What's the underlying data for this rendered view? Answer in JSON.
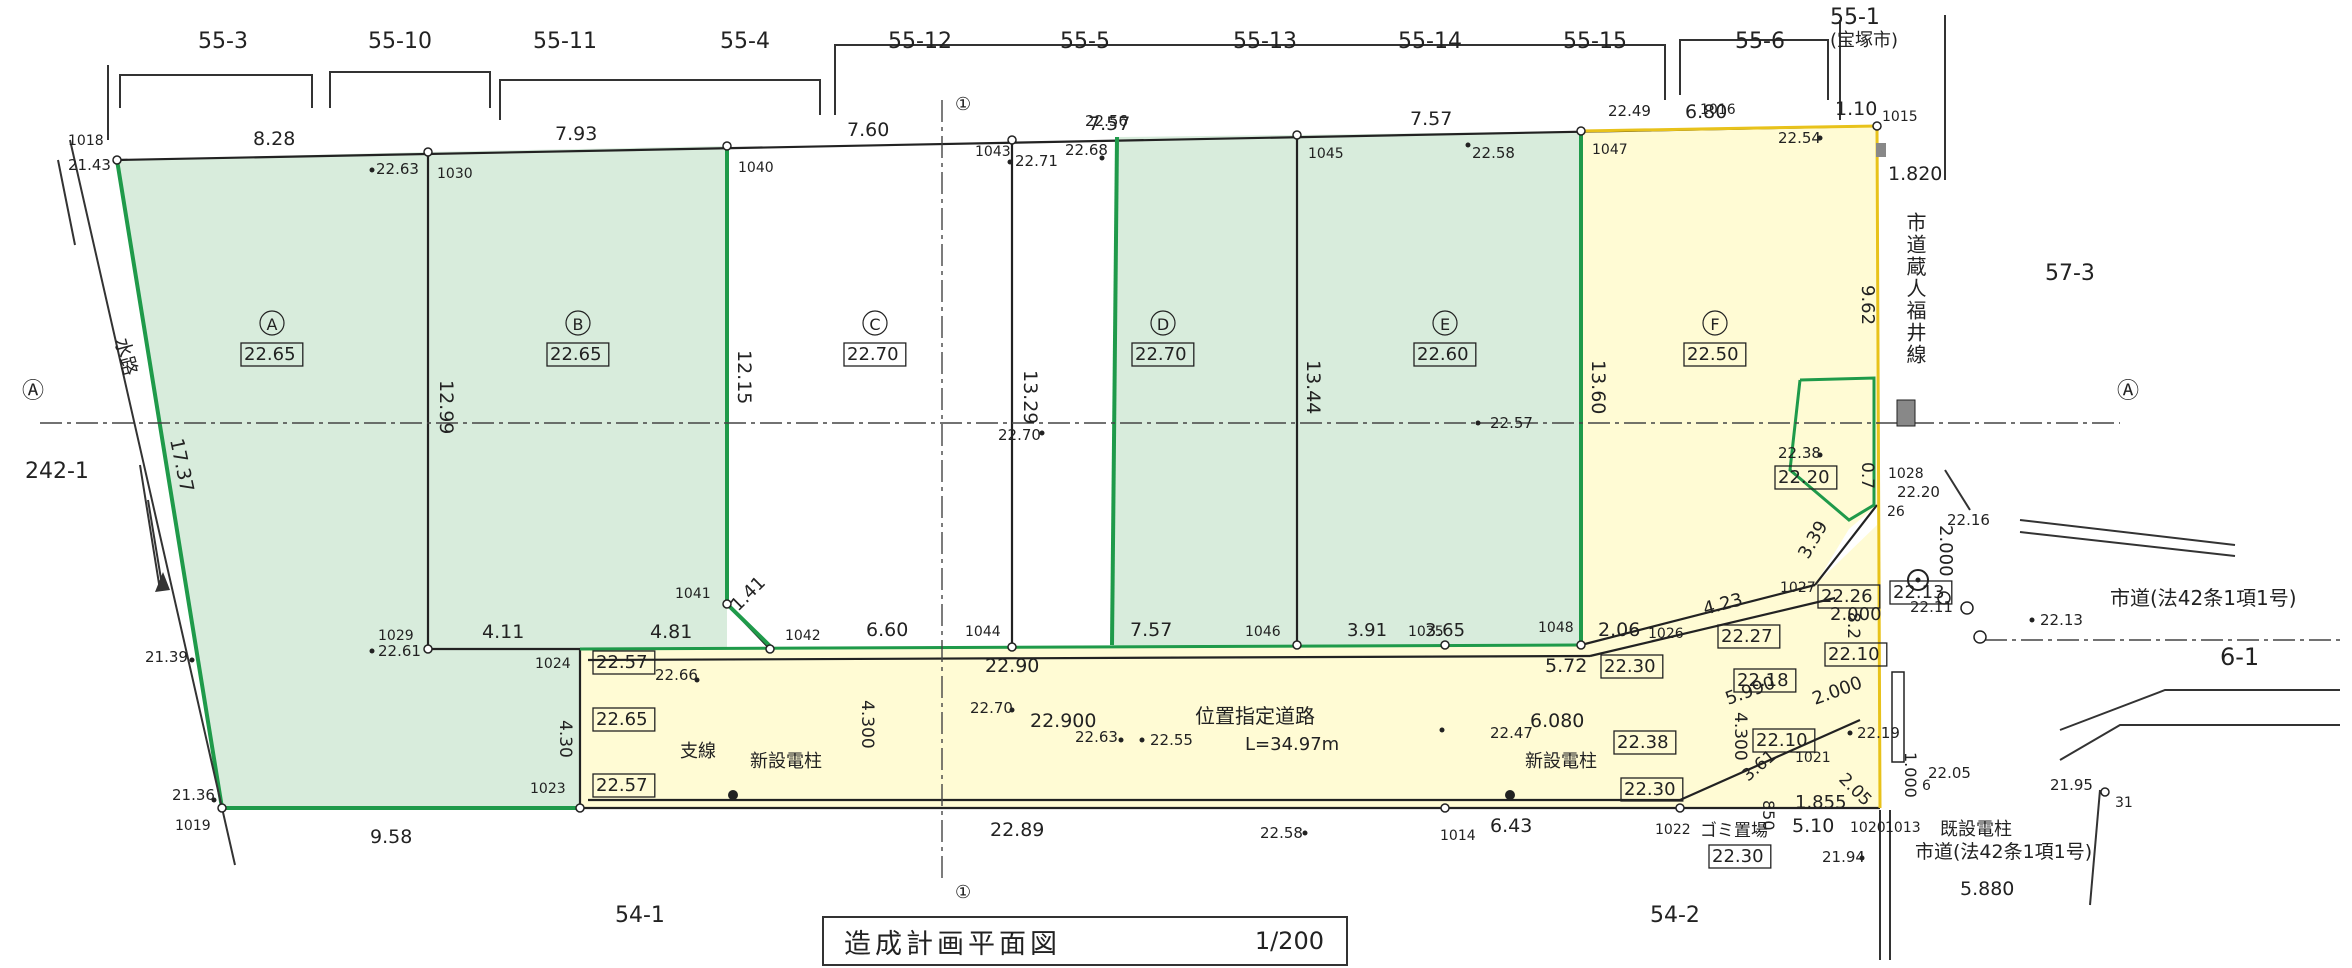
{
  "title": "造成計画平面図",
  "scale": "1/200",
  "neighbors_top": [
    "55-3",
    "55-10",
    "55-11",
    "55-4",
    "55-12",
    "55-5",
    "55-13",
    "55-14",
    "55-15",
    "55-6"
  ],
  "neighbor_551": "55-1",
  "takarazuka": "(宝塚市)",
  "neighbor_573": "57-3",
  "neighbor_2421": "242-1",
  "neighbor_61": "6-1",
  "neighbor_541": "54-1",
  "neighbor_542": "54-2",
  "road_vertical": "市道蔵人福井線",
  "road_42_right": "市道(法42条1項1号)",
  "road_42_bottom": "市道(法42条1項1号)",
  "waterway": "水路",
  "section_mark": "Ⓐ",
  "section_label": "①",
  "road_name": "位置指定道路",
  "road_length": "L=34.97m",
  "new_pole": "新設電柱",
  "brace": "支線",
  "existing_pole": "既設電柱",
  "garbage": "ゴミ置場",
  "lots": [
    {
      "label": "A",
      "level": "22.65"
    },
    {
      "label": "B",
      "level": "22.65"
    },
    {
      "label": "C",
      "level": "22.70"
    },
    {
      "label": "D",
      "level": "22.70"
    },
    {
      "label": "E",
      "level": "22.60"
    },
    {
      "label": "F",
      "level": "22.50"
    }
  ],
  "dims": {
    "top_828": "8.28",
    "top_793": "7.93",
    "top_760": "7.60",
    "top_757a": "7.57",
    "top_757b": "7.57",
    "top_680": "6.80",
    "top_110": "1.10",
    "right_1820": "1.820",
    "right_962": "9.62",
    "v_1299": "12.99",
    "v_1215": "12.15",
    "v_1329": "13.29",
    "v_1344": "13.44",
    "v_1360": "13.60",
    "left_1737": "17.37",
    "b_411": "4.11",
    "b_481": "4.81",
    "b_141": "1.41",
    "b_660": "6.60",
    "b_757": "7.57",
    "b_391": "3.91",
    "b_365": "3.65",
    "b_206": "2.06",
    "b_423": "4.23",
    "r_339": "3.39",
    "r_2000a": "2.000",
    "r_2000b": "2.000",
    "r_2000c": "2.000",
    "r_5990": "5.990",
    "r_4300": "4.300",
    "r_1855": "1.855",
    "r_205": "2.05",
    "r_361": "3.61",
    "r_850": "850",
    "r_1000": "1.000",
    "r_82": "8.2",
    "r_07": "0.7",
    "b_430": "4.30",
    "road_4300": "4.300",
    "road_2290": "22.90",
    "road_22900": "22.900",
    "road_6080": "6.080",
    "road_572": "5.72",
    "bot_958": "9.58",
    "bot_2289": "22.89",
    "bot_643": "6.43",
    "bot_510": "5.10",
    "bot_5880": "5.880"
  },
  "boxed": {
    "road_2257a": "22.57",
    "road_2265": "22.65",
    "road_2257b": "22.57",
    "road_2230a": "22.30",
    "road_2238": "22.38",
    "road_2230b": "22.30",
    "road_2230c": "22.30",
    "f_2220": "22.20",
    "r_2226": "22.26",
    "r_2227": "22.27",
    "r_2213": "22.13",
    "r_2210a": "22.10",
    "r_2218": "22.18",
    "r_2210b": "22.10"
  },
  "points": {
    "p1018": "1018",
    "p1030": "1030",
    "p1040": "1040",
    "p1043": "1043",
    "p1045": "1045",
    "p1047": "1047",
    "p1016": "1016",
    "p1015": "1015",
    "p1041": "1041",
    "p1029": "1029",
    "p1024": "1024",
    "p1042": "1042",
    "p1044": "1044",
    "p1046": "1046",
    "p1025": "1025",
    "p1048": "1048",
    "p1026": "1026",
    "p1027": "1027",
    "p1028": "1028",
    "p1023": "1023",
    "p1019": "1019",
    "p1014": "1014",
    "p1022": "1022",
    "p1020": "1020",
    "p1013": "1013",
    "p1021": "1021",
    "p26": "26",
    "p6": "6",
    "p31": "31"
  },
  "elev": {
    "e2143": "21.43",
    "e2263": "22.63",
    "e2256": "22.56",
    "e2271": "22.71",
    "e2268": "22.68",
    "e2258a": "22.58",
    "e2249": "22.49",
    "e2254": "22.54",
    "e2270": "22.70",
    "e2257": "22.57",
    "e2238": "22.38",
    "e2220": "22.20",
    "e2216": "22.16",
    "e2211": "22.11",
    "e2213": "22.13",
    "e2261": "22.61",
    "e2139": "21.39",
    "e2136": "21.36",
    "e2266": "22.66",
    "e2270b": "22.70",
    "e2263b": "22.63",
    "e2255": "22.55",
    "e2247": "22.47",
    "e2258b": "22.58",
    "e2219": "22.19",
    "e2205": "22.05",
    "e2195": "21.95",
    "e2194": "21.94"
  }
}
